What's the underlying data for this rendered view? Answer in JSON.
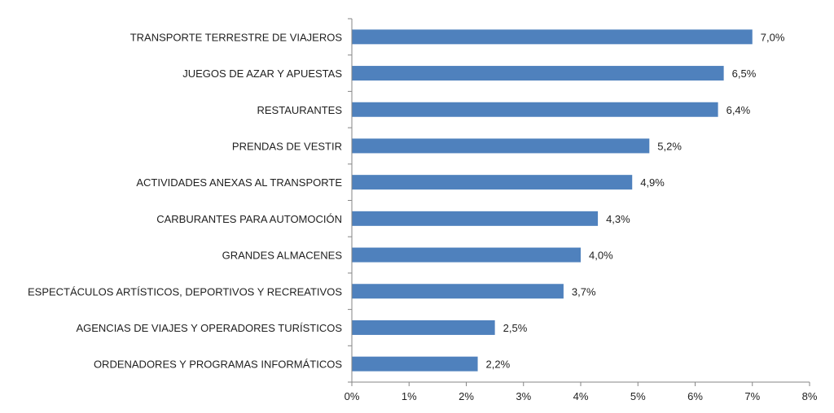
{
  "chart_data": {
    "type": "bar",
    "orientation": "horizontal",
    "categories": [
      "TRANSPORTE TERRESTRE DE VIAJEROS",
      "JUEGOS DE AZAR Y APUESTAS",
      "RESTAURANTES",
      "PRENDAS DE VESTIR",
      "ACTIVIDADES ANEXAS AL TRANSPORTE",
      "CARBURANTES PARA AUTOMOCIÓN",
      "GRANDES ALMACENES",
      "ESPECTÁCULOS ARTÍSTICOS, DEPORTIVOS Y RECREATIVOS",
      "AGENCIAS DE VIAJES Y OPERADORES TURÍSTICOS",
      "ORDENADORES Y PROGRAMAS INFORMÁTICOS"
    ],
    "values": [
      7.0,
      6.5,
      6.4,
      5.2,
      4.9,
      4.3,
      4.0,
      3.7,
      2.5,
      2.2
    ],
    "value_labels": [
      "7,0%",
      "6,5%",
      "6,4%",
      "5,2%",
      "4,9%",
      "4,3%",
      "4,0%",
      "3,7%",
      "2,5%",
      "2,2%"
    ],
    "xlim": [
      0,
      8
    ],
    "x_ticks": [
      0,
      1,
      2,
      3,
      4,
      5,
      6,
      7,
      8
    ],
    "x_tick_labels": [
      "0%",
      "1%",
      "2%",
      "3%",
      "4%",
      "5%",
      "6%",
      "7%",
      "8%"
    ],
    "title": "",
    "xlabel": "",
    "ylabel": "",
    "grid": false,
    "legend": "none",
    "bar_color": "#4f81bd",
    "axis_color": "#868686",
    "text_color": "#1f1f1f"
  }
}
